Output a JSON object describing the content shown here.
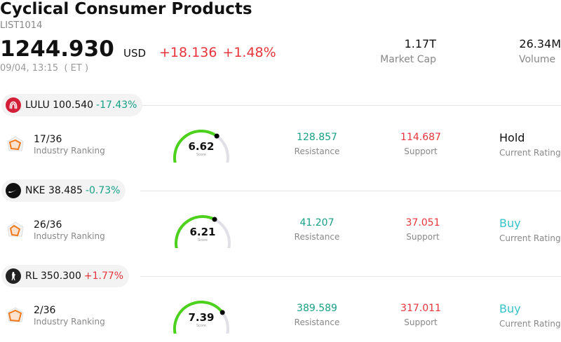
{
  "header": {
    "title": "Cyclical Consumer Products",
    "code": "LIST1014",
    "price": "1244.930",
    "currency": "USD",
    "change_abs": "+18.136",
    "change_pct": "+1.48%",
    "timestamp": "09/04, 13:15  ( ET )",
    "market_cap_value": "1.17T",
    "market_cap_label": "Market Cap",
    "volume_value": "26.34M",
    "volume_label": "Volume"
  },
  "colors": {
    "up": "#e8333c",
    "down": "#16a085",
    "gauge_fill": "#4cd11c",
    "gauge_track": "#e0e0e6",
    "rating_buy": "#36c2c8",
    "rank_icon": "#f07a1c"
  },
  "stocks": [
    {
      "symbol_price": "LULU 100.540",
      "change": "-17.43%",
      "direction": "down",
      "logo_icon": "lululemon-logo-icon",
      "rank": "17/36",
      "rank_label": "Industry Ranking",
      "score": "6.62",
      "score_value": 6.62,
      "score_label": "Score",
      "resistance": "128.857",
      "resistance_label": "Resistance",
      "support": "114.687",
      "support_label": "Support",
      "rating": "Hold",
      "rating_label": "Current Rating"
    },
    {
      "symbol_price": "NKE 38.485",
      "change": "-0.73%",
      "direction": "down",
      "logo_icon": "nike-logo-icon",
      "rank": "26/36",
      "rank_label": "Industry Ranking",
      "score": "6.21",
      "score_value": 6.21,
      "score_label": "Score",
      "resistance": "41.207",
      "resistance_label": "Resistance",
      "support": "37.051",
      "support_label": "Support",
      "rating": "Buy",
      "rating_label": "Current Rating"
    },
    {
      "symbol_price": "RL 350.300",
      "change": "+1.77%",
      "direction": "up",
      "logo_icon": "ralph-lauren-logo-icon",
      "rank": "2/36",
      "rank_label": "Industry Ranking",
      "score": "7.39",
      "score_value": 7.39,
      "score_label": "Score",
      "resistance": "389.589",
      "resistance_label": "Resistance",
      "support": "317.011",
      "support_label": "Support",
      "rating": "Buy",
      "rating_label": "Current Rating"
    }
  ]
}
